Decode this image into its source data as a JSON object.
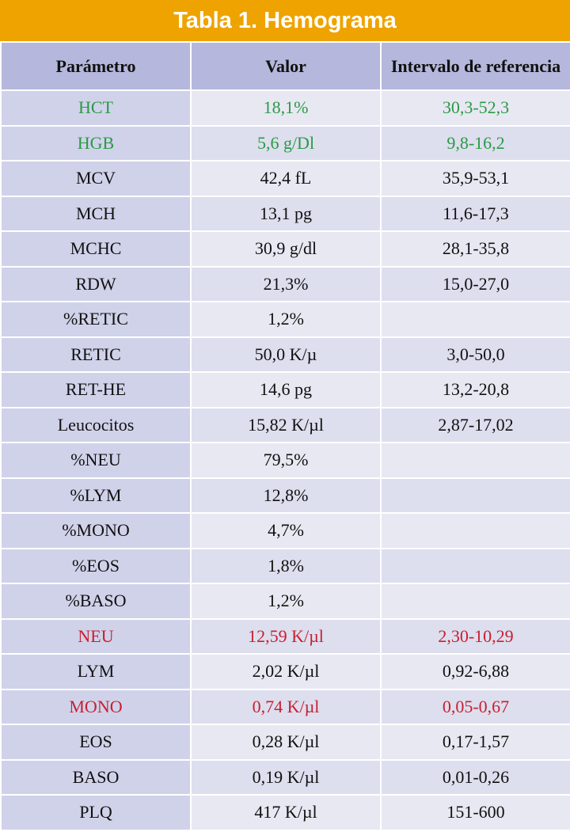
{
  "header": {
    "title": "Tabla 1. Hemograma"
  },
  "table": {
    "columns": [
      "Parámetro",
      "Valor",
      "Intervalo de referencia"
    ],
    "rows": [
      {
        "cells": [
          "HCT",
          "18,1%",
          "30,3-52,3"
        ],
        "color": "#2a9a45"
      },
      {
        "cells": [
          "HGB",
          "5,6 g/Dl",
          "9,8-16,2"
        ],
        "color": "#2a9a45"
      },
      {
        "cells": [
          "MCV",
          "42,4 fL",
          "35,9-53,1"
        ]
      },
      {
        "cells": [
          "MCH",
          "13,1 pg",
          "11,6-17,3"
        ]
      },
      {
        "cells": [
          "MCHC",
          "30,9 g/dl",
          "28,1-35,8"
        ]
      },
      {
        "cells": [
          "RDW",
          "21,3%",
          "15,0-27,0"
        ]
      },
      {
        "cells": [
          "%RETIC",
          "1,2%",
          null
        ]
      },
      {
        "cells": [
          "RETIC",
          "50,0 K/µ",
          "3,0-50,0"
        ]
      },
      {
        "cells": [
          "RET-HE",
          "14,6 pg",
          "13,2-20,8"
        ]
      },
      {
        "cells": [
          "Leucocitos",
          "15,82 K/µl",
          "2,87-17,02"
        ]
      },
      {
        "cells": [
          "%NEU",
          "79,5%",
          null
        ]
      },
      {
        "cells": [
          "%LYM",
          "12,8%",
          null
        ]
      },
      {
        "cells": [
          "%MONO",
          "4,7%",
          null
        ]
      },
      {
        "cells": [
          "%EOS",
          "1,8%",
          null
        ]
      },
      {
        "cells": [
          "%BASO",
          "1,2%",
          null
        ]
      },
      {
        "cells": [
          "NEU",
          "12,59 K/µl",
          "2,30-10,29"
        ],
        "color": "#c8202f"
      },
      {
        "cells": [
          "LYM",
          "2,02 K/µl",
          "0,92-6,88"
        ]
      },
      {
        "cells": [
          "MONO",
          "0,74 K/µl",
          "0,05-0,67"
        ],
        "color": "#c8202f"
      },
      {
        "cells": [
          "EOS",
          "0,28 K/µl",
          "0,17-1,57"
        ]
      },
      {
        "cells": [
          "BASO",
          "0,19 K/µl",
          "0,01-0,26"
        ]
      },
      {
        "cells": [
          "PLQ",
          "417 K/µl",
          "151-600"
        ]
      }
    ]
  }
}
